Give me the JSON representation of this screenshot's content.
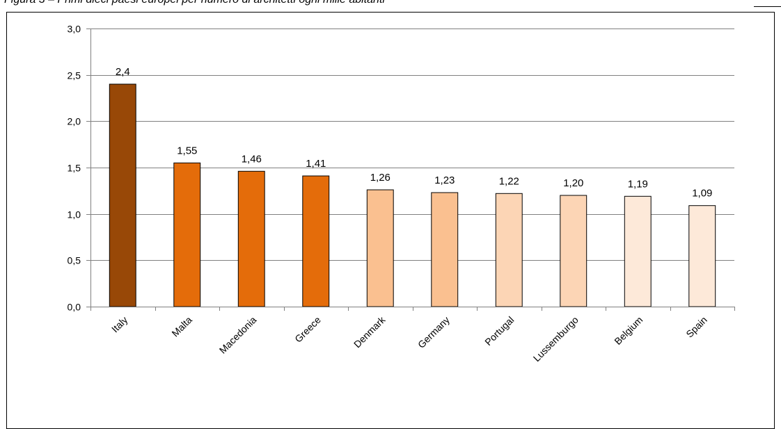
{
  "figure": {
    "caption": "Figura 3 – Primi dieci paesi europei per numero di architetti ogni mille abitanti"
  },
  "chart_data": {
    "type": "bar",
    "title": "",
    "xlabel": "",
    "ylabel": "",
    "categories": [
      "Italy",
      "Malta",
      "Macedonia",
      "Greece",
      "Denmark",
      "Germany",
      "Portugal",
      "Lussemburgo",
      "Belgium",
      "Spain"
    ],
    "values": [
      2.4,
      1.55,
      1.46,
      1.41,
      1.26,
      1.23,
      1.22,
      1.2,
      1.19,
      1.09
    ],
    "data_labels": [
      "2,4",
      "1,55",
      "1,46",
      "1,41",
      "1,26",
      "1,23",
      "1,22",
      "1,20",
      "1,19",
      "1,09"
    ],
    "ylim": [
      0,
      3
    ],
    "yticks": [
      0,
      0.5,
      1,
      1.5,
      2,
      2.5,
      3
    ],
    "ytick_labels": [
      "0,0",
      "0,5",
      "1,0",
      "1,5",
      "2,0",
      "2,5",
      "3,0"
    ],
    "grid": true,
    "legend": "none",
    "bar_colors": [
      "#984807",
      "#e46c0a",
      "#e46c0a",
      "#e46c0a",
      "#fac090",
      "#fac090",
      "#fcd5b5",
      "#fcd5b5",
      "#fde9d9",
      "#fde9d9"
    ],
    "bar_outline": "#000000",
    "grid_color": "#808080"
  }
}
